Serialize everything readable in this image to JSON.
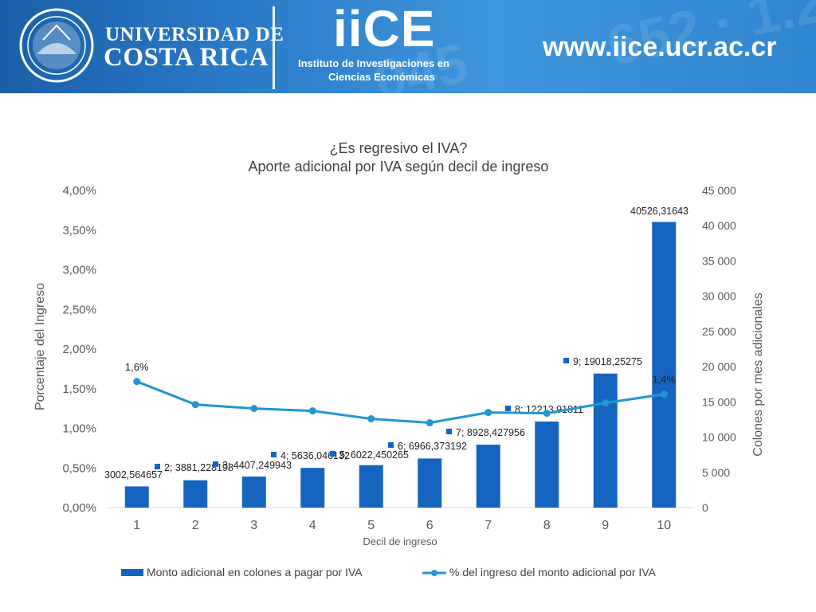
{
  "header": {
    "university_line1": "UNIVERSIDAD DE",
    "university_line2": "COSTA RICA",
    "logo_text": "iiCE",
    "institute_line1": "Instituto de Investigaciones en",
    "institute_line2": "Ciencias Económicas",
    "url": "www.iice.ucr.ac.cr"
  },
  "colors": {
    "banner": "#2a7cc9",
    "bar": "#1565c0",
    "line": "#2196d3",
    "axis_text": "#595959",
    "title_text": "#404040",
    "gridline": "#d9d9d9"
  },
  "chart_data": {
    "type": "bar+line",
    "title": "¿Es regresivo el IVA?",
    "subtitle": "Aporte adicional por IVA según decil de ingreso",
    "xlabel": "Decil de ingreso",
    "ylabel_left": "Porcentaje del Ingreso",
    "ylabel_right": "Colones por mes adicionales",
    "categories": [
      "1",
      "2",
      "3",
      "4",
      "5",
      "6",
      "7",
      "8",
      "9",
      "10"
    ],
    "ylim_left": [
      0,
      4.0
    ],
    "ylim_right": [
      0,
      45000
    ],
    "yticks_left": [
      "0,00%",
      "0,50%",
      "1,00%",
      "1,50%",
      "2,00%",
      "2,50%",
      "3,00%",
      "3,50%",
      "4,00%"
    ],
    "yticks_right": [
      "0",
      "5 000",
      "10 000",
      "15 000",
      "20 000",
      "25 000",
      "30 000",
      "35 000",
      "40 000",
      "45 000"
    ],
    "grid": false,
    "legend_position": "bottom",
    "series": [
      {
        "name": "Monto adicional en colones a pagar por IVA",
        "type": "bar",
        "axis": "right",
        "values": [
          3002.564657,
          3881.228198,
          4407.249943,
          5636.046132,
          6022.450265,
          6966.373192,
          8928.427956,
          12213.91811,
          19018.25275,
          40526.31643
        ],
        "labels": [
          "3002,564657",
          "2; 3881,228198",
          "3; 4407,249943",
          "4; 5636,046132",
          "5; 6022,450265",
          "6; 6966,373192",
          "7; 8928,427956",
          "8; 12213,91811",
          "9; 19018,25275",
          "40526,31643"
        ]
      },
      {
        "name": "% del ingreso del monto adicional por IVA",
        "type": "line",
        "axis": "left",
        "values": [
          1.59,
          1.3,
          1.25,
          1.22,
          1.12,
          1.07,
          1.2,
          1.19,
          1.32,
          1.43
        ],
        "labels": [
          "1,6%",
          "",
          "",
          "",
          "",
          "",
          "",
          "",
          "",
          "1,4%"
        ]
      }
    ]
  }
}
